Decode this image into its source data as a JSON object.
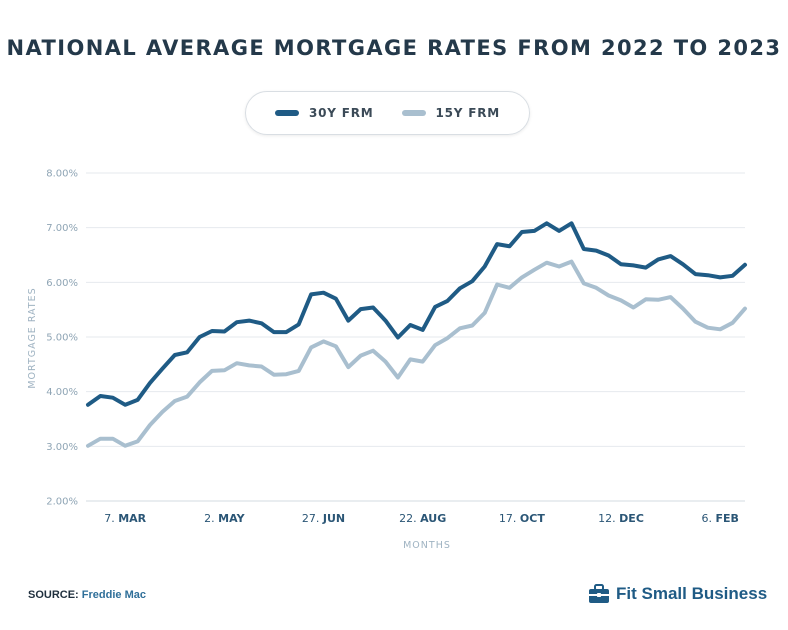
{
  "title": "NATIONAL AVERAGE MORTGAGE RATES FROM 2022 TO 2023",
  "legend": [
    {
      "label": "30Y FRM",
      "color": "#1f5b85"
    },
    {
      "label": "15Y FRM",
      "color": "#a9bfcf"
    }
  ],
  "source": {
    "label": "SOURCE:",
    "value": "Freddie Mac"
  },
  "brand": {
    "name": "Fit Small Business",
    "icon": "briefcase-icon"
  },
  "chart_data": {
    "type": "line",
    "xlabel": "MONTHS",
    "ylabel": "MORTGAGE RATES",
    "ylim": [
      2.0,
      8.0
    ],
    "yticks": [
      "8.00%",
      "7.00%",
      "6.00%",
      "5.00%",
      "4.00%",
      "3.00%",
      "2.00%"
    ],
    "ytick_values": [
      8,
      7,
      6,
      5,
      4,
      3,
      2
    ],
    "x_tick_labels": [
      {
        "day": "7.",
        "month": "MAR",
        "index": 3
      },
      {
        "day": "2.",
        "month": "MAY",
        "index": 11
      },
      {
        "day": "27.",
        "month": "JUN",
        "index": 19
      },
      {
        "day": "22.",
        "month": "AUG",
        "index": 27
      },
      {
        "day": "17.",
        "month": "OCT",
        "index": 35
      },
      {
        "day": "12.",
        "month": "DEC",
        "index": 43
      },
      {
        "day": "6.",
        "month": "FEB",
        "index": 51
      }
    ],
    "grid": "horizontal",
    "series": [
      {
        "name": "30Y FRM",
        "color": "#1f5b85",
        "values": [
          3.76,
          3.92,
          3.89,
          3.76,
          3.85,
          4.16,
          4.42,
          4.67,
          4.72,
          5.0,
          5.11,
          5.1,
          5.27,
          5.3,
          5.25,
          5.09,
          5.09,
          5.23,
          5.78,
          5.81,
          5.7,
          5.3,
          5.51,
          5.54,
          5.3,
          4.99,
          5.22,
          5.13,
          5.55,
          5.66,
          5.89,
          6.02,
          6.29,
          6.7,
          6.66,
          6.92,
          6.94,
          7.08,
          6.94,
          7.08,
          6.61,
          6.58,
          6.49,
          6.33,
          6.31,
          6.27,
          6.42,
          6.48,
          6.33,
          6.15,
          6.13,
          6.09,
          6.12,
          6.32
        ]
      },
      {
        "name": "15Y FRM",
        "color": "#a9bfcf",
        "values": [
          3.01,
          3.14,
          3.14,
          3.01,
          3.09,
          3.39,
          3.63,
          3.83,
          3.91,
          4.17,
          4.38,
          4.39,
          4.52,
          4.48,
          4.46,
          4.31,
          4.32,
          4.38,
          4.81,
          4.92,
          4.83,
          4.45,
          4.66,
          4.75,
          4.55,
          4.26,
          4.59,
          4.55,
          4.85,
          4.98,
          5.16,
          5.21,
          5.44,
          5.96,
          5.9,
          6.09,
          6.23,
          6.36,
          6.29,
          6.38,
          5.98,
          5.9,
          5.76,
          5.67,
          5.54,
          5.69,
          5.68,
          5.73,
          5.52,
          5.28,
          5.17,
          5.14,
          5.26,
          5.52
        ]
      }
    ]
  }
}
